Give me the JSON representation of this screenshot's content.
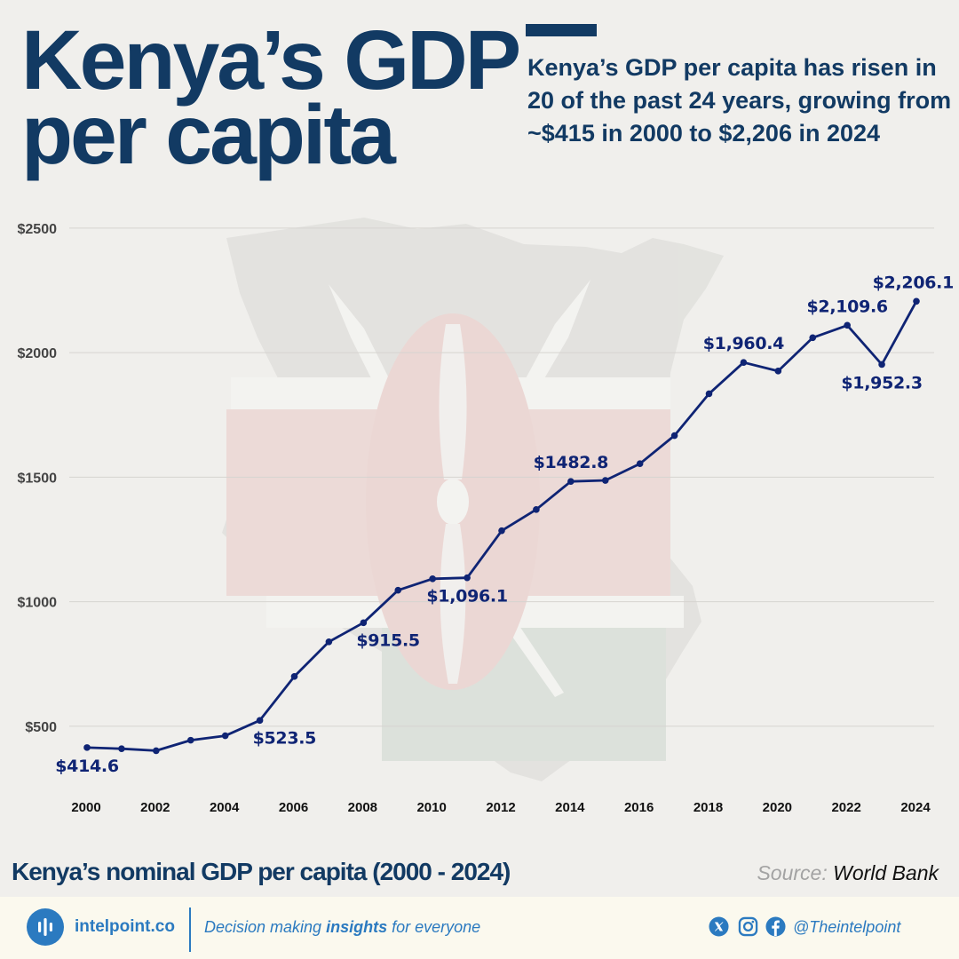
{
  "header": {
    "title_line1": "Kenya’s GDP",
    "title_line2": "per capita",
    "subtitle": "Kenya’s GDP per capita has risen in 20 of the past 24 years, growing from ~$415 in 2000 to $2,206 in 2024"
  },
  "chart_data": {
    "type": "line",
    "x": [
      2000,
      2001,
      2002,
      2003,
      2004,
      2005,
      2006,
      2007,
      2008,
      2009,
      2010,
      2011,
      2012,
      2013,
      2014,
      2015,
      2016,
      2017,
      2018,
      2019,
      2020,
      2021,
      2022,
      2023,
      2024
    ],
    "series": [
      {
        "values": [
          414.6,
          410,
          402,
          444,
          462,
          523.5,
          700,
          839,
          915.5,
          1046,
          1092,
          1096.1,
          1285,
          1370,
          1482.8,
          1487,
          1554,
          1667,
          1835,
          1960.4,
          1926,
          2060,
          2109.6,
          1952.3,
          2206.1
        ]
      }
    ],
    "ylim": [
      325,
      2560
    ],
    "yticks": [
      {
        "value": 500,
        "label": "$500"
      },
      {
        "value": 1000,
        "label": "$1000"
      },
      {
        "value": 1500,
        "label": "$1500"
      },
      {
        "value": 2000,
        "label": "$2000"
      },
      {
        "value": 2500,
        "label": "$2500"
      }
    ],
    "xticks": [
      {
        "value": 2000,
        "label": "2000"
      },
      {
        "value": 2002,
        "label": "2002"
      },
      {
        "value": 2004,
        "label": "2004"
      },
      {
        "value": 2006,
        "label": "2006"
      },
      {
        "value": 2008,
        "label": "2008"
      },
      {
        "value": 2010,
        "label": "2010"
      },
      {
        "value": 2012,
        "label": "2012"
      },
      {
        "value": 2014,
        "label": "2014"
      },
      {
        "value": 2016,
        "label": "2016"
      },
      {
        "value": 2018,
        "label": "2018"
      },
      {
        "value": 2020,
        "label": "2020"
      },
      {
        "value": 2022,
        "label": "2022"
      },
      {
        "value": 2024,
        "label": "2024"
      }
    ],
    "annotations": [
      {
        "x": 2000,
        "text": "$414.6",
        "position": "below"
      },
      {
        "x": 2005,
        "text": "$523.5",
        "position": "below-right"
      },
      {
        "x": 2008,
        "text": "$915.5",
        "position": "below-right"
      },
      {
        "x": 2011,
        "text": "$1,096.1",
        "position": "below"
      },
      {
        "x": 2014,
        "text": "$1482.8",
        "position": "above"
      },
      {
        "x": 2019,
        "text": "$1,960.4",
        "position": "above"
      },
      {
        "x": 2022,
        "text": "$2,109.6",
        "position": "above"
      },
      {
        "x": 2023,
        "text": "$1,952.3",
        "position": "below"
      },
      {
        "x": 2024,
        "text": "$2,206.1",
        "position": "above"
      }
    ],
    "grid": true,
    "colors": {
      "line": "#0f2474",
      "grid": "#d6d4d0",
      "tick_text": "#444444",
      "watermark_map": "#d9d8d5"
    }
  },
  "caption": "Kenya’s nominal GDP per capita (2000 - 2024)",
  "source": {
    "label": "Source:",
    "value": "World Bank"
  },
  "footer": {
    "brand": "intelpoint.co",
    "tagline_pre": "Decision making",
    "tagline_bold": "insights",
    "tagline_post": "for everyone",
    "handle": "@Theintelpoint",
    "icons": [
      "x-icon",
      "instagram-icon",
      "facebook-icon"
    ]
  },
  "colors": {
    "title": "#123a63",
    "accent": "#123a63",
    "brand_blue": "#2b7ac0",
    "kenya_red": "#c8102e",
    "kenya_green": "#006b3f"
  }
}
